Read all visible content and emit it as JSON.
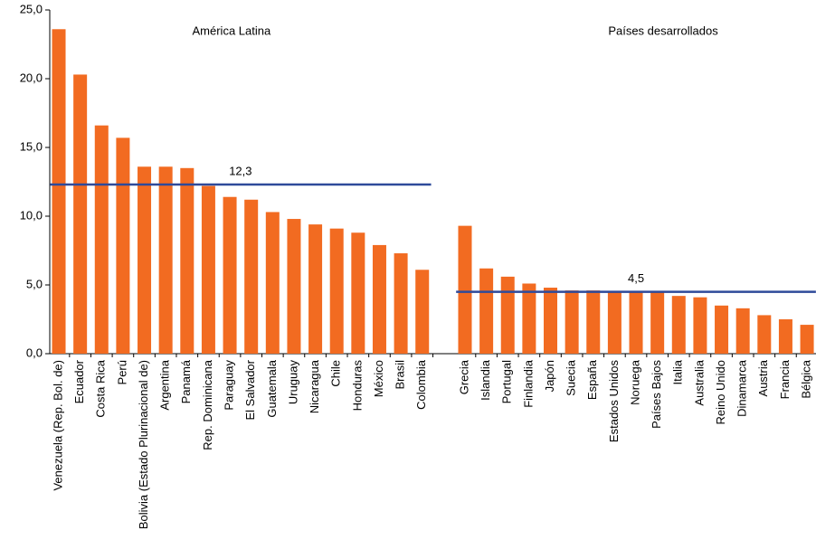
{
  "chart_data": {
    "type": "bar",
    "color": "#f26b21",
    "mean_color": "#2e4a9a",
    "ylim": [
      0,
      25
    ],
    "yticks": [
      {
        "value": 0,
        "label": "0,0"
      },
      {
        "value": 5,
        "label": "5,0"
      },
      {
        "value": 10,
        "label": "10,0"
      },
      {
        "value": 15,
        "label": "15,0"
      },
      {
        "value": 20,
        "label": "20,0"
      },
      {
        "value": 25,
        "label": "25,0"
      }
    ],
    "groups": [
      {
        "name": "América Latina",
        "categories": [
          "Venezuela (Rep. Bol. de)",
          "Ecuador",
          "Costa Rica",
          "Perú",
          "Bolivia (Estado Plurinacional de)",
          "Argentina",
          "Panamá",
          "Rep. Dominicana",
          "Paraguay",
          "El Salvador",
          "Guatemala",
          "Uruguay",
          "Nicaragua",
          "Chile",
          "Honduras",
          "México",
          "Brasil",
          "Colombia"
        ],
        "values": [
          23.6,
          20.3,
          16.6,
          15.7,
          13.6,
          13.6,
          13.5,
          12.2,
          11.4,
          11.2,
          10.3,
          9.8,
          9.4,
          9.1,
          8.8,
          7.9,
          7.3,
          6.1
        ],
        "mean": {
          "value": 12.3,
          "label": "12,3"
        }
      },
      {
        "name": "Países desarrollados",
        "categories": [
          "Grecia",
          "Islandia",
          "Portugal",
          "Finlandia",
          "Japón",
          "Suecia",
          "España",
          "Estados Unidos",
          "Noruega",
          "Países Bajos",
          "Italia",
          "Australia",
          "Reino Unido",
          "Dinamarca",
          "Austria",
          "Francia",
          "Bélgica"
        ],
        "values": [
          9.3,
          6.2,
          5.6,
          5.1,
          4.8,
          4.6,
          4.6,
          4.5,
          4.5,
          4.5,
          4.2,
          4.1,
          3.5,
          3.3,
          2.8,
          2.5,
          2.1
        ],
        "mean": {
          "value": 4.5,
          "label": "4,5"
        }
      }
    ]
  }
}
